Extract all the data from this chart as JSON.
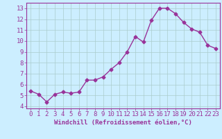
{
  "x": [
    0,
    1,
    2,
    3,
    4,
    5,
    6,
    7,
    8,
    9,
    10,
    11,
    12,
    13,
    14,
    15,
    16,
    17,
    18,
    19,
    20,
    21,
    22,
    23
  ],
  "y": [
    5.4,
    5.1,
    4.4,
    5.1,
    5.3,
    5.2,
    5.3,
    6.4,
    6.4,
    6.7,
    7.4,
    8.0,
    9.0,
    10.4,
    9.9,
    11.9,
    13.0,
    13.0,
    12.5,
    11.7,
    11.1,
    10.8,
    9.6,
    9.3
  ],
  "line_color": "#993399",
  "marker": "D",
  "marker_size": 2.5,
  "bg_color": "#cceeff",
  "grid_color": "#aacccc",
  "xlabel": "Windchill (Refroidissement éolien,°C)",
  "ylabel": "",
  "xlim": [
    -0.5,
    23.5
  ],
  "ylim": [
    3.8,
    13.5
  ],
  "yticks": [
    4,
    5,
    6,
    7,
    8,
    9,
    10,
    11,
    12,
    13
  ],
  "xticks": [
    0,
    1,
    2,
    3,
    4,
    5,
    6,
    7,
    8,
    9,
    10,
    11,
    12,
    13,
    14,
    15,
    16,
    17,
    18,
    19,
    20,
    21,
    22,
    23
  ],
  "tick_color": "#993399",
  "label_color": "#993399",
  "font_size": 6.5,
  "xlabel_fontsize": 6.5,
  "linewidth": 1.0
}
